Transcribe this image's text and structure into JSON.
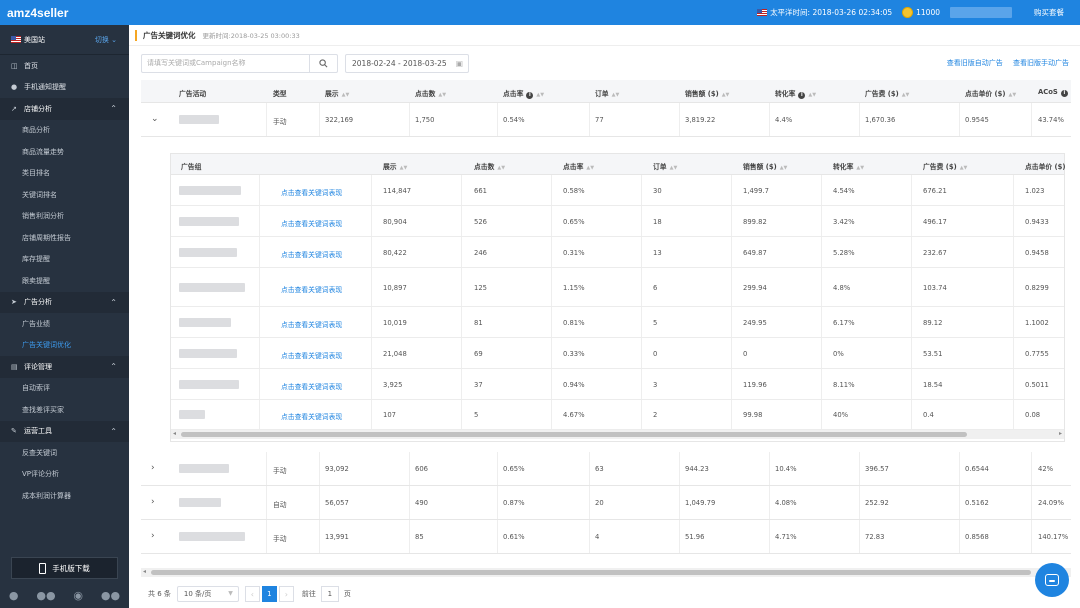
{
  "app": {
    "logo": "amz4seller"
  },
  "topbar": {
    "time_label": "太平洋时间: 2018-03-26 02:34:05",
    "coins": "11000",
    "buy_label": "购买套餐"
  },
  "sidebar": {
    "site": "美国站",
    "switch_label": "切换",
    "items": [
      {
        "label": "首页",
        "kind": "item",
        "icon": "home-icon"
      },
      {
        "label": "手机通知提醒",
        "kind": "item",
        "icon": "chat-icon"
      },
      {
        "label": "店铺分析",
        "kind": "group",
        "icon": "chart-icon"
      },
      {
        "label": "商品分析",
        "kind": "sub"
      },
      {
        "label": "商品流量走势",
        "kind": "sub"
      },
      {
        "label": "类目排名",
        "kind": "sub"
      },
      {
        "label": "关键词排名",
        "kind": "sub"
      },
      {
        "label": "销售利润分析",
        "kind": "sub"
      },
      {
        "label": "店铺周期性报告",
        "kind": "sub"
      },
      {
        "label": "库存提醒",
        "kind": "sub"
      },
      {
        "label": "跟卖提醒",
        "kind": "sub"
      },
      {
        "label": "广告分析",
        "kind": "group",
        "icon": "megaphone-icon"
      },
      {
        "label": "广告业绩",
        "kind": "sub"
      },
      {
        "label": "广告关键词优化",
        "kind": "sub",
        "active": true
      },
      {
        "label": "评论管理",
        "kind": "group",
        "icon": "comment-icon"
      },
      {
        "label": "自动索评",
        "kind": "sub"
      },
      {
        "label": "查找差评买家",
        "kind": "sub"
      },
      {
        "label": "运营工具",
        "kind": "group",
        "icon": "wrench-icon"
      },
      {
        "label": "反查关键词",
        "kind": "sub"
      },
      {
        "label": "VP评论分析",
        "kind": "sub"
      },
      {
        "label": "成本利润计算器",
        "kind": "sub"
      }
    ],
    "mobile_download": "手机版下载"
  },
  "page": {
    "title": "广告关键词优化",
    "updated": "更新时间:2018-03-25 03:00:33",
    "search_placeholder": "请填写关键词或Campaign名称",
    "date_range": "2018-02-24 - 2018-03-25",
    "link_auto": "查看旧版自动广告",
    "link_manual": "查看旧版手动广告"
  },
  "main_table": {
    "headers": [
      "广告活动",
      "类型",
      "展示",
      "点击数",
      "点击率",
      "订单",
      "销售额 ($)",
      "转化率",
      "广告费 ($)",
      "点击单价 ($)",
      "ACoS"
    ],
    "rows": [
      [
        "",
        "手动",
        "322,169",
        "1,750",
        "0.54%",
        "77",
        "3,819.22",
        "4.4%",
        "1,670.36",
        "0.9545",
        "43.74%"
      ],
      [
        "",
        "手动",
        "93,092",
        "606",
        "0.65%",
        "63",
        "944.23",
        "10.4%",
        "396.57",
        "0.6544",
        "42%"
      ],
      [
        "",
        "自动",
        "56,057",
        "490",
        "0.87%",
        "20",
        "1,049.79",
        "4.08%",
        "252.92",
        "0.5162",
        "24.09%"
      ],
      [
        "",
        "手动",
        "13,991",
        "85",
        "0.61%",
        "4",
        "51.96",
        "4.71%",
        "72.83",
        "0.8568",
        "140.17%"
      ]
    ]
  },
  "sub_table": {
    "headers": [
      "广告组",
      "",
      "展示",
      "点击数",
      "点击率",
      "订单",
      "销售额 ($)",
      "转化率",
      "广告费 ($)",
      "点击单价 ($)"
    ],
    "link_label": "点击查看关键词表现",
    "rows": [
      [
        "114,847",
        "661",
        "0.58%",
        "30",
        "1,499.7",
        "4.54%",
        "676.21",
        "1.023"
      ],
      [
        "80,904",
        "526",
        "0.65%",
        "18",
        "899.82",
        "3.42%",
        "496.17",
        "0.9433"
      ],
      [
        "80,422",
        "246",
        "0.31%",
        "13",
        "649.87",
        "5.28%",
        "232.67",
        "0.9458"
      ],
      [
        "10,897",
        "125",
        "1.15%",
        "6",
        "299.94",
        "4.8%",
        "103.74",
        "0.8299"
      ],
      [
        "10,019",
        "81",
        "0.81%",
        "5",
        "249.95",
        "6.17%",
        "89.12",
        "1.1002"
      ],
      [
        "21,048",
        "69",
        "0.33%",
        "0",
        "0",
        "0%",
        "53.51",
        "0.7755"
      ],
      [
        "3,925",
        "37",
        "0.94%",
        "3",
        "119.96",
        "8.11%",
        "18.54",
        "0.5011"
      ],
      [
        "107",
        "5",
        "4.67%",
        "2",
        "99.98",
        "40%",
        "0.4",
        "0.08"
      ]
    ]
  },
  "pager": {
    "total": "共 6 条",
    "page_size": "10 条/页",
    "current": "1",
    "goto_label": "前往",
    "goto_value": "1",
    "page_suffix": "页"
  }
}
